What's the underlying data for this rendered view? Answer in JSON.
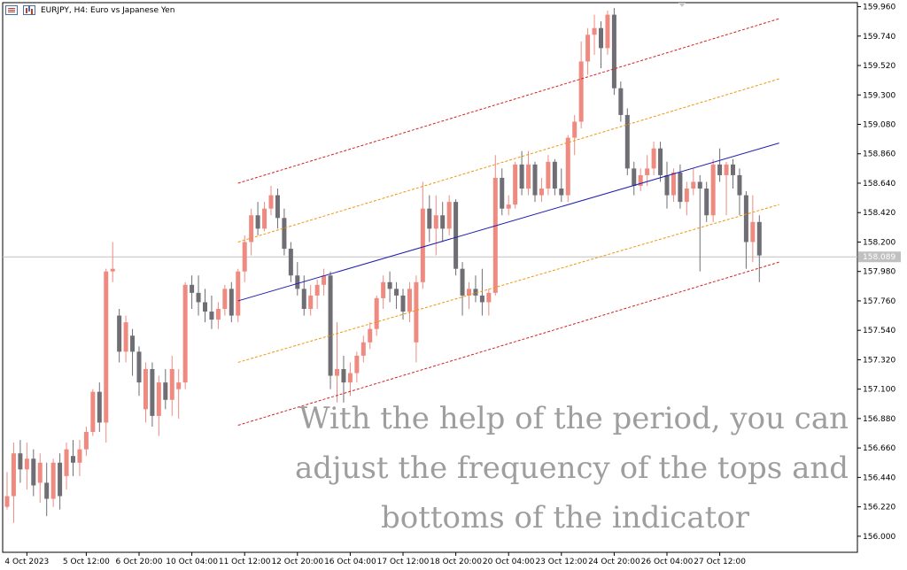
{
  "header": {
    "title": "EURJPY, H4:  Euro vs Japanese Yen",
    "icons": [
      "list-icon",
      "bar-chart-icon"
    ]
  },
  "overlay": {
    "line1": "With the help of the period, you can",
    "line2": "adjust the frequency of the tops and",
    "line3": "bottoms of the indicator"
  },
  "colors": {
    "bull": "#ef8a80",
    "bear": "#6e6e74",
    "middle_line": "#1f1fb0",
    "outer_band": "#d62020",
    "inner_band": "#f0960a",
    "price_line": "#c0c0c0",
    "price_tag": "#c0c0c0"
  },
  "chart_data": {
    "type": "candlestick",
    "symbol": "EURJPY",
    "timeframe": "H4",
    "ylim": [
      155.88,
      159.99
    ],
    "y_ticks": [
      "159.960",
      "159.740",
      "159.520",
      "159.300",
      "159.080",
      "158.860",
      "158.640",
      "158.420",
      "158.200",
      "157.980",
      "157.760",
      "157.540",
      "157.320",
      "157.100",
      "156.880",
      "156.660",
      "156.440",
      "156.220",
      "156.000"
    ],
    "current_price": "158.089",
    "x_labels": [
      {
        "label": "4 Oct 2023",
        "bar": 3
      },
      {
        "label": "5 Oct 12:00",
        "bar": 12
      },
      {
        "label": "6 Oct 20:00",
        "bar": 20
      },
      {
        "label": "10 Oct 04:00",
        "bar": 28
      },
      {
        "label": "11 Oct 12:00",
        "bar": 36
      },
      {
        "label": "12 Oct 20:00",
        "bar": 44
      },
      {
        "label": "16 Oct 04:00",
        "bar": 52
      },
      {
        "label": "17 Oct 12:00",
        "bar": 60
      },
      {
        "label": "18 Oct 20:00",
        "bar": 68
      },
      {
        "label": "20 Oct 04:00",
        "bar": 76
      },
      {
        "label": "23 Oct 12:00",
        "bar": 84
      },
      {
        "label": "24 Oct 20:00",
        "bar": 92
      },
      {
        "label": "26 Oct 04:00",
        "bar": 100
      },
      {
        "label": "27 Oct 12:00",
        "bar": 108
      }
    ],
    "candles": [
      [
        156.22,
        156.48,
        156.2,
        156.3
      ],
      [
        156.3,
        156.7,
        156.1,
        156.62
      ],
      [
        156.62,
        156.72,
        156.4,
        156.5
      ],
      [
        156.5,
        156.7,
        156.35,
        156.58
      ],
      [
        156.58,
        156.65,
        156.3,
        156.38
      ],
      [
        156.4,
        156.62,
        156.25,
        156.55
      ],
      [
        156.4,
        156.55,
        156.15,
        156.28
      ],
      [
        156.28,
        156.58,
        156.22,
        156.55
      ],
      [
        156.55,
        156.62,
        156.2,
        156.3
      ],
      [
        156.45,
        156.7,
        156.35,
        156.65
      ],
      [
        156.6,
        156.72,
        156.45,
        156.55
      ],
      [
        156.55,
        156.72,
        156.45,
        156.65
      ],
      [
        156.65,
        156.82,
        156.6,
        156.78
      ],
      [
        156.78,
        157.1,
        156.75,
        157.08
      ],
      [
        157.08,
        157.15,
        156.78,
        156.85
      ],
      [
        156.85,
        158.0,
        156.7,
        157.98
      ],
      [
        157.98,
        158.2,
        157.9,
        158.0
      ],
      [
        157.65,
        157.7,
        157.3,
        157.38
      ],
      [
        157.38,
        157.65,
        157.3,
        157.6
      ],
      [
        157.5,
        157.55,
        157.2,
        157.38
      ],
      [
        157.38,
        157.42,
        157.05,
        157.15
      ],
      [
        156.95,
        157.3,
        156.85,
        157.25
      ],
      [
        157.25,
        157.3,
        156.82,
        156.9
      ],
      [
        156.9,
        157.2,
        156.75,
        157.15
      ],
      [
        157.15,
        157.25,
        156.95,
        157.02
      ],
      [
        157.02,
        157.35,
        156.9,
        157.25
      ],
      [
        157.1,
        157.25,
        156.88,
        157.15
      ],
      [
        157.15,
        157.9,
        157.1,
        157.88
      ],
      [
        157.88,
        157.95,
        157.7,
        157.82
      ],
      [
        157.82,
        157.95,
        157.65,
        157.75
      ],
      [
        157.75,
        157.85,
        157.6,
        157.68
      ],
      [
        157.68,
        157.8,
        157.55,
        157.62
      ],
      [
        157.62,
        157.75,
        157.55,
        157.7
      ],
      [
        157.7,
        157.88,
        157.65,
        157.85
      ],
      [
        157.85,
        157.9,
        157.6,
        157.65
      ],
      [
        157.65,
        158.0,
        157.6,
        157.98
      ],
      [
        157.98,
        158.25,
        157.9,
        158.2
      ],
      [
        158.2,
        158.45,
        158.1,
        158.4
      ],
      [
        158.4,
        158.5,
        158.25,
        158.3
      ],
      [
        158.3,
        158.5,
        158.28,
        158.45
      ],
      [
        158.45,
        158.62,
        158.4,
        158.55
      ],
      [
        158.55,
        158.6,
        158.3,
        158.38
      ],
      [
        158.38,
        158.45,
        158.1,
        158.15
      ],
      [
        158.15,
        158.2,
        157.9,
        157.95
      ],
      [
        157.95,
        158.05,
        157.8,
        157.85
      ],
      [
        157.85,
        157.95,
        157.65,
        157.7
      ],
      [
        157.7,
        157.88,
        157.65,
        157.8
      ],
      [
        157.8,
        157.92,
        157.7,
        157.88
      ],
      [
        157.88,
        158.0,
        157.8,
        157.95
      ],
      [
        157.95,
        157.98,
        157.1,
        157.2
      ],
      [
        157.2,
        157.6,
        157.0,
        157.25
      ],
      [
        157.25,
        157.35,
        157.0,
        157.15
      ],
      [
        157.15,
        157.3,
        157.05,
        157.22
      ],
      [
        157.22,
        157.38,
        157.15,
        157.35
      ],
      [
        157.35,
        157.5,
        157.3,
        157.45
      ],
      [
        157.45,
        157.6,
        157.4,
        157.55
      ],
      [
        157.55,
        157.8,
        157.5,
        157.78
      ],
      [
        157.78,
        157.95,
        157.7,
        157.9
      ],
      [
        157.9,
        157.98,
        157.75,
        157.85
      ],
      [
        157.85,
        157.9,
        157.7,
        157.8
      ],
      [
        157.8,
        157.85,
        157.62,
        157.68
      ],
      [
        157.68,
        157.9,
        157.6,
        157.85
      ],
      [
        157.45,
        157.95,
        157.3,
        157.9
      ],
      [
        157.9,
        158.65,
        157.85,
        158.45
      ],
      [
        158.45,
        158.55,
        158.2,
        158.3
      ],
      [
        158.3,
        158.55,
        158.1,
        158.4
      ],
      [
        158.4,
        158.5,
        158.2,
        158.3
      ],
      [
        158.3,
        158.55,
        158.25,
        158.5
      ],
      [
        158.5,
        158.52,
        157.95,
        158.0
      ],
      [
        158.0,
        158.05,
        157.65,
        157.8
      ],
      [
        157.8,
        157.9,
        157.7,
        157.85
      ],
      [
        157.85,
        157.95,
        157.75,
        157.8
      ],
      [
        157.8,
        158.0,
        157.65,
        157.75
      ],
      [
        157.75,
        157.85,
        157.65,
        157.82
      ],
      [
        157.82,
        158.85,
        157.8,
        158.68
      ],
      [
        158.68,
        158.75,
        158.4,
        158.45
      ],
      [
        158.45,
        158.55,
        158.4,
        158.48
      ],
      [
        158.48,
        158.8,
        158.45,
        158.78
      ],
      [
        158.78,
        158.88,
        158.55,
        158.6
      ],
      [
        158.6,
        158.88,
        158.55,
        158.78
      ],
      [
        158.78,
        158.8,
        158.5,
        158.55
      ],
      [
        158.55,
        158.68,
        158.5,
        158.6
      ],
      [
        158.6,
        158.85,
        158.55,
        158.8
      ],
      [
        158.8,
        158.82,
        158.55,
        158.6
      ],
      [
        158.6,
        158.75,
        158.5,
        158.55
      ],
      [
        158.55,
        159.0,
        158.5,
        158.98
      ],
      [
        158.98,
        159.15,
        158.85,
        159.1
      ],
      [
        159.1,
        159.7,
        159.05,
        159.55
      ],
      [
        159.55,
        159.8,
        159.45,
        159.75
      ],
      [
        159.75,
        159.9,
        159.6,
        159.8
      ],
      [
        159.8,
        159.85,
        159.5,
        159.65
      ],
      [
        159.65,
        159.93,
        159.6,
        159.9
      ],
      [
        159.9,
        159.95,
        159.3,
        159.35
      ],
      [
        159.35,
        159.4,
        159.1,
        159.15
      ],
      [
        159.15,
        159.2,
        158.7,
        158.75
      ],
      [
        158.75,
        158.8,
        158.55,
        158.62
      ],
      [
        158.62,
        158.75,
        158.58,
        158.7
      ],
      [
        158.7,
        158.85,
        158.62,
        158.75
      ],
      [
        158.75,
        158.95,
        158.7,
        158.9
      ],
      [
        158.9,
        158.95,
        158.65,
        158.7
      ],
      [
        158.7,
        158.8,
        158.45,
        158.55
      ],
      [
        158.55,
        158.75,
        158.5,
        158.72
      ],
      [
        158.72,
        158.78,
        158.45,
        158.5
      ],
      [
        158.5,
        158.65,
        158.4,
        158.6
      ],
      [
        158.6,
        158.75,
        158.55,
        158.65
      ],
      [
        158.65,
        158.7,
        157.98,
        158.6
      ],
      [
        158.6,
        158.65,
        158.35,
        158.4
      ],
      [
        158.4,
        158.82,
        158.35,
        158.78
      ],
      [
        158.78,
        158.9,
        158.65,
        158.7
      ],
      [
        158.7,
        158.8,
        158.4,
        158.78
      ],
      [
        158.78,
        158.82,
        158.6,
        158.7
      ],
      [
        158.7,
        158.75,
        158.4,
        158.55
      ],
      [
        158.55,
        158.58,
        158.0,
        158.2
      ],
      [
        158.2,
        158.55,
        158.05,
        158.35
      ],
      [
        158.35,
        158.4,
        157.9,
        158.1
      ]
    ],
    "regression": {
      "start_bar": 35,
      "end_bar": 117,
      "middle": [
        157.76,
        158.94
      ],
      "inner_upper": [
        158.2,
        159.42
      ],
      "inner_lower": [
        157.3,
        158.48
      ],
      "outer_upper": [
        158.64,
        159.87
      ],
      "outer_lower": [
        156.83,
        158.05
      ]
    }
  }
}
